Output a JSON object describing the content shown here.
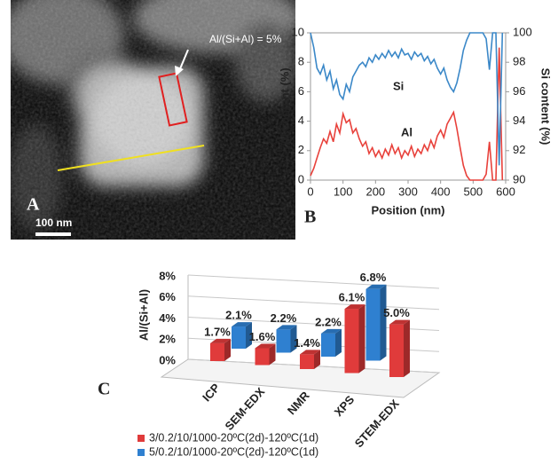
{
  "panel_a": {
    "label": "A",
    "scale_bar": "100 nm",
    "annotation": "Al/(Si+Al) = 5%"
  },
  "chart_data": [
    {
      "type": "line",
      "panel_label": "B",
      "x_label": "Position (nm)",
      "y_label": "Al content (%)",
      "y2_label": "Si content (%)",
      "x": [
        0,
        10,
        20,
        30,
        40,
        50,
        60,
        70,
        80,
        90,
        100,
        110,
        120,
        130,
        140,
        150,
        160,
        170,
        180,
        190,
        200,
        210,
        220,
        230,
        240,
        250,
        260,
        270,
        280,
        290,
        300,
        310,
        320,
        330,
        340,
        350,
        360,
        370,
        380,
        390,
        400,
        410,
        420,
        430,
        440,
        450,
        460,
        470,
        480,
        490,
        500,
        510,
        520,
        530,
        540,
        550,
        560,
        570,
        580,
        590
      ],
      "xlim": [
        0,
        600
      ],
      "xticks": [
        0,
        100,
        200,
        300,
        400,
        500,
        600
      ],
      "ylim": [
        0,
        10
      ],
      "yticks": [
        0,
        2,
        4,
        6,
        8,
        10
      ],
      "y2lim": [
        90,
        100
      ],
      "y2ticks": [
        90,
        92,
        94,
        96,
        98,
        100
      ],
      "series": [
        {
          "name": "Al",
          "color": "#e8413b",
          "values": [
            0.3,
            0.8,
            1.5,
            2.2,
            2.8,
            2.5,
            3.3,
            2.6,
            3.8,
            3.2,
            4.5,
            3.9,
            4.1,
            3.2,
            3.5,
            2.8,
            2.3,
            2.6,
            1.8,
            2.2,
            1.6,
            2.0,
            1.5,
            2.1,
            1.7,
            2.4,
            1.8,
            2.2,
            1.5,
            2.0,
            1.7,
            2.3,
            1.6,
            2.1,
            1.8,
            2.4,
            2.0,
            2.7,
            2.2,
            3.0,
            3.4,
            2.9,
            3.8,
            4.2,
            4.6,
            3.5,
            2.2,
            1.0,
            0.3,
            0,
            0,
            0,
            0,
            0,
            0.4,
            2.6,
            0,
            0,
            9.0,
            0
          ]
        },
        {
          "name": "Si",
          "color": "#3b88c8",
          "axis": "y2",
          "values": [
            100,
            99,
            97.6,
            97.2,
            97.8,
            96.8,
            97.4,
            96.2,
            96.8,
            95.8,
            95.5,
            96.5,
            96.0,
            97.0,
            97.4,
            97.8,
            98.0,
            97.7,
            98.3,
            98.0,
            98.5,
            98.2,
            98.6,
            98.3,
            98.8,
            98.4,
            98.7,
            98.3,
            98.9,
            98.5,
            98.6,
            98.2,
            98.7,
            98.4,
            98.6,
            98.1,
            98.4,
            97.9,
            98.2,
            97.6,
            97.2,
            97.6,
            96.8,
            96.3,
            96.0,
            96.6,
            97.6,
            98.8,
            99.5,
            100,
            100,
            100,
            100,
            100,
            99.6,
            97.5,
            100,
            100,
            91.0,
            100
          ]
        }
      ]
    },
    {
      "type": "bar3d",
      "panel_label": "C",
      "y_label": "Al/(Si+Al)",
      "categories": [
        "ICP",
        "SEM-EDX",
        "NMR",
        "XPS",
        "STEM-EDX"
      ],
      "ylim": [
        0,
        8
      ],
      "yticks": [
        {
          "value": 0,
          "label": "0%"
        },
        {
          "value": 2,
          "label": "2%"
        },
        {
          "value": 4,
          "label": "4%"
        },
        {
          "value": 6,
          "label": "6%"
        },
        {
          "value": 8,
          "label": "8%"
        }
      ],
      "series": [
        {
          "name": "3/0.2/10/1000-20ºC(2d)-120ºC(1d)",
          "color": "#e03b3b",
          "values": [
            1.7,
            1.6,
            1.4,
            6.1,
            5.0
          ],
          "value_labels": [
            "1.7%",
            "1.6%",
            "1.4%",
            "6.1%",
            "5.0%"
          ]
        },
        {
          "name": "5/0.2/10/1000-20ºC(2d)-120ºC(1d)",
          "color": "#2f80d0",
          "values": [
            2.1,
            2.2,
            2.2,
            6.8,
            null
          ],
          "value_labels": [
            "2.1%",
            "2.2%",
            "2.2%",
            "6.8%",
            null
          ]
        }
      ]
    }
  ]
}
